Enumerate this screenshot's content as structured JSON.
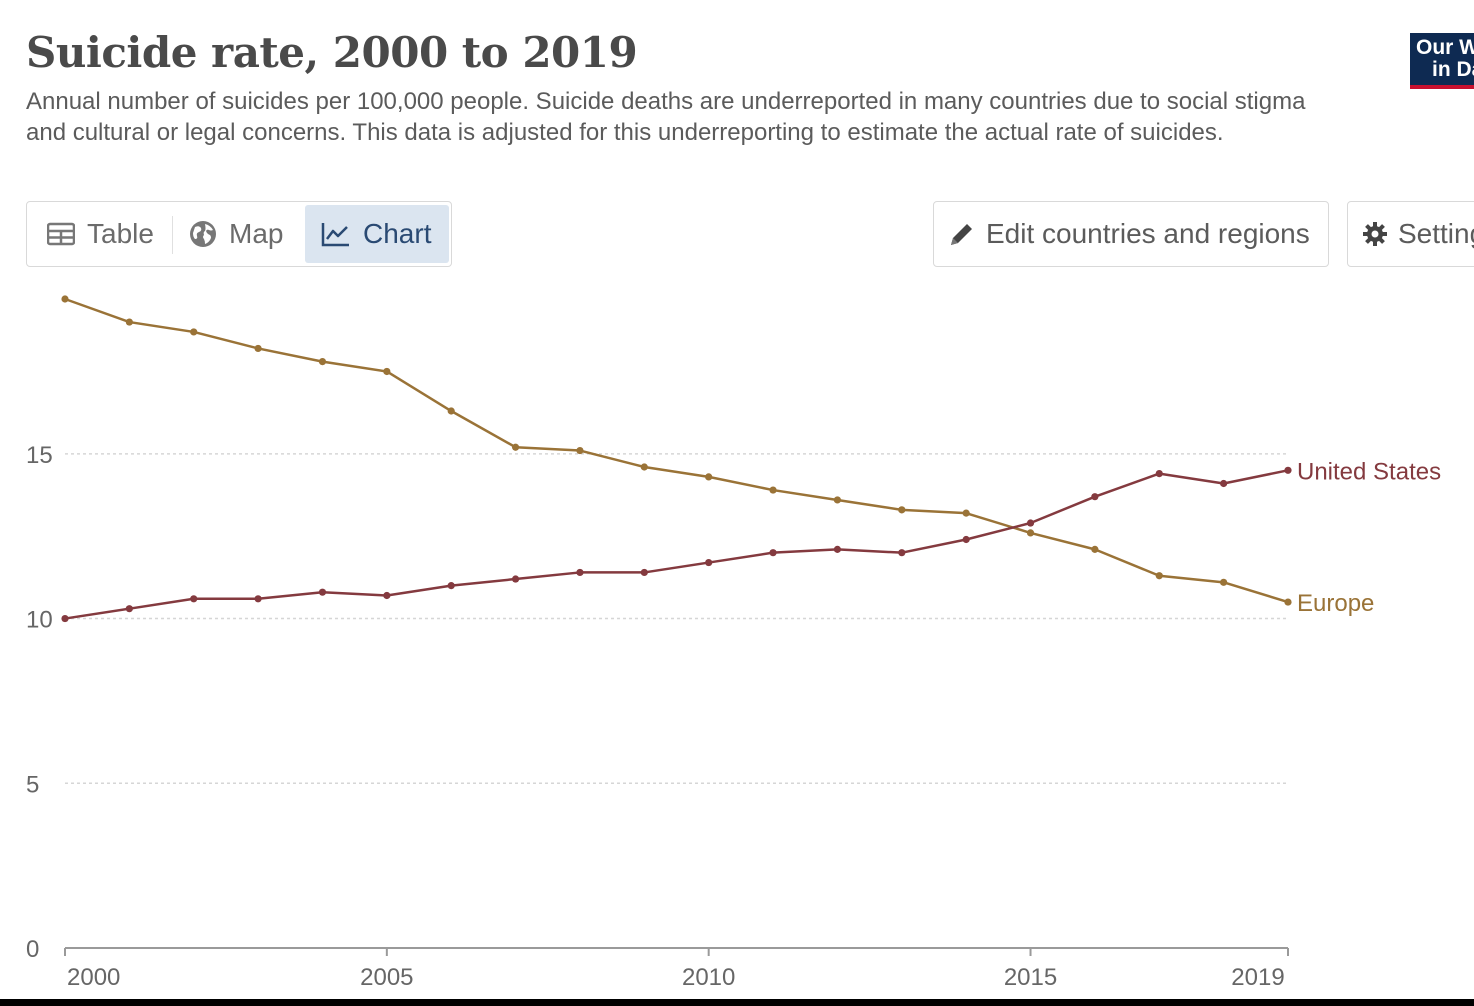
{
  "title": "Suicide rate, 2000 to 2019",
  "subtitle": "Annual number of suicides per 100,000 people. Suicide deaths are underreported in many countries due to social stigma and cultural or legal concerns. This data is adjusted for this underreporting to estimate the actual rate of suicides.",
  "logo": {
    "line1": "Our World",
    "line2": "in Data",
    "bg_color": "#0e2a52",
    "accent_color": "#c8102e"
  },
  "tabs": [
    {
      "label": "Table",
      "icon": "table-icon",
      "active": false
    },
    {
      "label": "Map",
      "icon": "globe-icon",
      "active": false
    },
    {
      "label": "Chart",
      "icon": "line-chart-icon",
      "active": true
    }
  ],
  "buttons": {
    "edit": {
      "label": "Edit countries and regions",
      "icon": "pencil-icon"
    },
    "settings": {
      "label": "Settings",
      "icon": "gear-icon"
    }
  },
  "chart_data": {
    "type": "line",
    "title": "Suicide rate, 2000 to 2019",
    "xlabel": "",
    "ylabel": "",
    "x": [
      2000,
      2001,
      2002,
      2003,
      2004,
      2005,
      2006,
      2007,
      2008,
      2009,
      2010,
      2011,
      2012,
      2013,
      2014,
      2015,
      2016,
      2017,
      2018,
      2019
    ],
    "xlim": [
      2000,
      2019
    ],
    "ylim": [
      0,
      19.7
    ],
    "x_ticks": [
      "2000",
      "2005",
      "2010",
      "2015",
      "2019"
    ],
    "y_ticks": [
      "0",
      "5",
      "10",
      "15"
    ],
    "y_grid_values": [
      5,
      10,
      15
    ],
    "series": [
      {
        "name": "Europe",
        "color": "#9a7337",
        "values": [
          19.7,
          19.0,
          18.7,
          18.2,
          17.8,
          17.5,
          16.3,
          15.2,
          15.1,
          14.6,
          14.3,
          13.9,
          13.6,
          13.3,
          13.2,
          12.6,
          12.1,
          11.3,
          11.1,
          10.5
        ]
      },
      {
        "name": "United States",
        "color": "#843a3f",
        "values": [
          10.0,
          10.3,
          10.6,
          10.6,
          10.8,
          10.7,
          11.0,
          11.2,
          11.4,
          11.4,
          11.7,
          12.0,
          12.1,
          12.0,
          12.4,
          12.9,
          13.7,
          14.4,
          14.1,
          14.5
        ]
      }
    ]
  }
}
